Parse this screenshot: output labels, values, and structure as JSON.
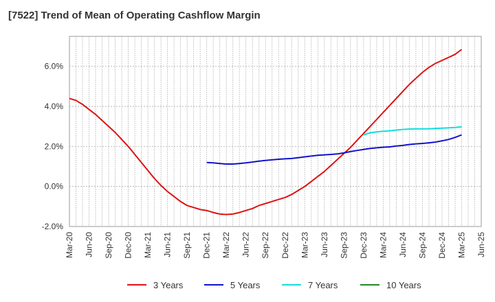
{
  "chart_data": {
    "type": "line",
    "title": "[7522]  Trend of Mean of Operating Cashflow Margin",
    "xlabel": "",
    "ylabel": "",
    "ylim": [
      -2.0,
      7.5
    ],
    "yticks": [
      "-2.0%",
      "0.0%",
      "2.0%",
      "4.0%",
      "6.0%"
    ],
    "ytick_values": [
      -2.0,
      0.0,
      2.0,
      4.0,
      6.0
    ],
    "xticks": [
      "Mar-20",
      "Jun-20",
      "Sep-20",
      "Dec-20",
      "Mar-21",
      "Jun-21",
      "Sep-21",
      "Dec-21",
      "Mar-22",
      "Jun-22",
      "Sep-22",
      "Dec-22",
      "Mar-23",
      "Jun-23",
      "Sep-23",
      "Dec-23",
      "Mar-24",
      "Jun-24",
      "Sep-24",
      "Dec-24",
      "Mar-25",
      "Jun-25"
    ],
    "grid": true,
    "legend_position": "bottom",
    "series": [
      {
        "name": "3 Years",
        "color": "#dd1111",
        "points": [
          [
            "Mar-20",
            4.4
          ],
          [
            "Apr-20",
            4.3
          ],
          [
            "May-20",
            4.1
          ],
          [
            "Jun-20",
            3.85
          ],
          [
            "Jul-20",
            3.6
          ],
          [
            "Aug-20",
            3.3
          ],
          [
            "Sep-20",
            3.0
          ],
          [
            "Oct-20",
            2.7
          ],
          [
            "Nov-20",
            2.35
          ],
          [
            "Dec-20",
            2.0
          ],
          [
            "Jan-21",
            1.6
          ],
          [
            "Feb-21",
            1.2
          ],
          [
            "Mar-21",
            0.8
          ],
          [
            "Apr-21",
            0.4
          ],
          [
            "May-21",
            0.05
          ],
          [
            "Jun-21",
            -0.25
          ],
          [
            "Jul-21",
            -0.5
          ],
          [
            "Aug-21",
            -0.75
          ],
          [
            "Sep-21",
            -0.95
          ],
          [
            "Oct-21",
            -1.05
          ],
          [
            "Nov-21",
            -1.15
          ],
          [
            "Dec-21",
            -1.2
          ],
          [
            "Jan-22",
            -1.3
          ],
          [
            "Feb-22",
            -1.38
          ],
          [
            "Mar-22",
            -1.4
          ],
          [
            "Apr-22",
            -1.38
          ],
          [
            "May-22",
            -1.3
          ],
          [
            "Jun-22",
            -1.2
          ],
          [
            "Jul-22",
            -1.1
          ],
          [
            "Aug-22",
            -0.95
          ],
          [
            "Sep-22",
            -0.85
          ],
          [
            "Oct-22",
            -0.75
          ],
          [
            "Nov-22",
            -0.65
          ],
          [
            "Dec-22",
            -0.55
          ],
          [
            "Jan-23",
            -0.4
          ],
          [
            "Feb-23",
            -0.2
          ],
          [
            "Mar-23",
            0.0
          ],
          [
            "Apr-23",
            0.25
          ],
          [
            "May-23",
            0.5
          ],
          [
            "Jun-23",
            0.75
          ],
          [
            "Jul-23",
            1.05
          ],
          [
            "Aug-23",
            1.35
          ],
          [
            "Sep-23",
            1.65
          ],
          [
            "Oct-23",
            1.95
          ],
          [
            "Nov-23",
            2.3
          ],
          [
            "Dec-23",
            2.65
          ],
          [
            "Jan-24",
            3.0
          ],
          [
            "Feb-24",
            3.35
          ],
          [
            "Mar-24",
            3.7
          ],
          [
            "Apr-24",
            4.05
          ],
          [
            "May-24",
            4.4
          ],
          [
            "Jun-24",
            4.75
          ],
          [
            "Jul-24",
            5.1
          ],
          [
            "Aug-24",
            5.4
          ],
          [
            "Sep-24",
            5.7
          ],
          [
            "Oct-24",
            5.95
          ],
          [
            "Nov-24",
            6.15
          ],
          [
            "Dec-24",
            6.3
          ],
          [
            "Jan-25",
            6.45
          ],
          [
            "Feb-25",
            6.6
          ],
          [
            "Mar-25",
            6.85
          ]
        ]
      },
      {
        "name": "5 Years",
        "color": "#1111cc",
        "points": [
          [
            "Dec-21",
            1.2
          ],
          [
            "Jan-22",
            1.18
          ],
          [
            "Feb-22",
            1.15
          ],
          [
            "Mar-22",
            1.12
          ],
          [
            "Apr-22",
            1.12
          ],
          [
            "May-22",
            1.15
          ],
          [
            "Jun-22",
            1.18
          ],
          [
            "Jul-22",
            1.22
          ],
          [
            "Aug-22",
            1.27
          ],
          [
            "Sep-22",
            1.3
          ],
          [
            "Oct-22",
            1.33
          ],
          [
            "Nov-22",
            1.36
          ],
          [
            "Dec-22",
            1.38
          ],
          [
            "Jan-23",
            1.4
          ],
          [
            "Feb-23",
            1.44
          ],
          [
            "Mar-23",
            1.48
          ],
          [
            "Apr-23",
            1.52
          ],
          [
            "May-23",
            1.56
          ],
          [
            "Jun-23",
            1.58
          ],
          [
            "Jul-23",
            1.6
          ],
          [
            "Aug-23",
            1.63
          ],
          [
            "Sep-23",
            1.68
          ],
          [
            "Oct-23",
            1.74
          ],
          [
            "Nov-23",
            1.8
          ],
          [
            "Dec-23",
            1.85
          ],
          [
            "Jan-24",
            1.9
          ],
          [
            "Feb-24",
            1.93
          ],
          [
            "Mar-24",
            1.96
          ],
          [
            "Apr-24",
            1.98
          ],
          [
            "May-24",
            2.02
          ],
          [
            "Jun-24",
            2.05
          ],
          [
            "Jul-24",
            2.1
          ],
          [
            "Aug-24",
            2.13
          ],
          [
            "Sep-24",
            2.15
          ],
          [
            "Oct-24",
            2.18
          ],
          [
            "Nov-24",
            2.22
          ],
          [
            "Dec-24",
            2.28
          ],
          [
            "Jan-25",
            2.35
          ],
          [
            "Feb-25",
            2.45
          ],
          [
            "Mar-25",
            2.58
          ]
        ]
      },
      {
        "name": "7 Years",
        "color": "#11dddd",
        "points": [
          [
            "Dec-23",
            2.58
          ],
          [
            "Jan-24",
            2.68
          ],
          [
            "Feb-24",
            2.73
          ],
          [
            "Mar-24",
            2.76
          ],
          [
            "Apr-24",
            2.78
          ],
          [
            "May-24",
            2.82
          ],
          [
            "Jun-24",
            2.85
          ],
          [
            "Jul-24",
            2.87
          ],
          [
            "Aug-24",
            2.88
          ],
          [
            "Sep-24",
            2.88
          ],
          [
            "Oct-24",
            2.88
          ],
          [
            "Nov-24",
            2.9
          ],
          [
            "Dec-24",
            2.91
          ],
          [
            "Jan-25",
            2.93
          ],
          [
            "Feb-25",
            2.95
          ],
          [
            "Mar-25",
            2.98
          ]
        ]
      },
      {
        "name": "10 Years",
        "color": "#228822",
        "points": []
      }
    ]
  }
}
